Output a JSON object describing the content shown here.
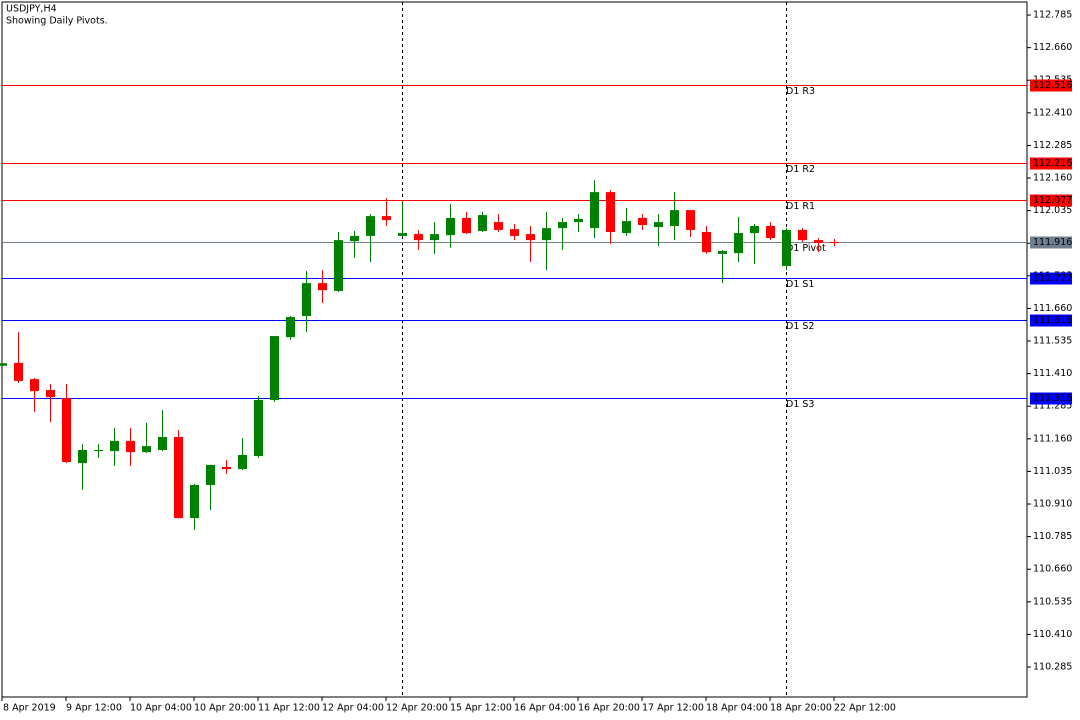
{
  "chart_data": {
    "type": "candlestick",
    "title": "USDJPY,H4",
    "subtitle": "Showing Daily Pivots.",
    "categories": [
      "8 Apr 2019",
      null,
      null,
      null,
      "9 Apr 12:00",
      null,
      null,
      null,
      "10 Apr 04:00",
      null,
      null,
      null,
      "10 Apr 20:00",
      null,
      null,
      null,
      "11 Apr 12:00",
      null,
      null,
      null,
      "12 Apr 04:00",
      null,
      null,
      null,
      "12 Apr 20:00",
      null,
      null,
      null,
      "15 Apr 12:00",
      null,
      null,
      null,
      "16 Apr 04:00",
      null,
      null,
      null,
      "16 Apr 20:00",
      null,
      null,
      null,
      "17 Apr 12:00",
      null,
      null,
      null,
      "18 Apr 04:00",
      null,
      null,
      null,
      "18 Apr 20:00",
      null,
      null,
      null,
      "22 Apr 12:00"
    ],
    "open": [
      111.44,
      111.451,
      111.389,
      111.347,
      111.316,
      111.067,
      111.113,
      111.113,
      111.152,
      111.109,
      111.117,
      111.167,
      110.856,
      110.983,
      111.052,
      111.044,
      111.094,
      111.309,
      111.55,
      111.631,
      111.757,
      111.727,
      111.918,
      111.938,
      112.014,
      111.938,
      111.945,
      111.922,
      111.941,
      112.007,
      111.957,
      111.991,
      111.964,
      111.945,
      111.922,
      111.968,
      111.991,
      111.968,
      112.106,
      111.949,
      112.007,
      111.972,
      111.976,
      112.037,
      111.953,
      111.869,
      111.872,
      111.949,
      111.976,
      111.823,
      111.961,
      111.922,
      111.915
    ],
    "high": [
      111.45,
      111.569,
      111.393,
      111.37,
      111.37,
      111.14,
      111.14,
      111.202,
      111.202,
      111.221,
      111.27,
      111.194,
      110.987,
      111.06,
      111.079,
      111.163,
      111.324,
      111.554,
      111.631,
      111.803,
      111.807,
      111.953,
      111.957,
      112.022,
      112.083,
      112.072,
      111.96,
      111.991,
      112.06,
      112.03,
      112.03,
      112.022,
      111.984,
      111.976,
      112.03,
      112.007,
      112.022,
      112.152,
      112.114,
      112.045,
      112.022,
      112.022,
      112.106,
      112.037,
      111.976,
      111.884,
      112.011,
      111.984,
      111.991,
      111.968,
      111.968,
      111.93,
      111.926
    ],
    "low": [
      111.44,
      111.374,
      111.263,
      111.224,
      111.067,
      110.964,
      111.086,
      111.056,
      111.056,
      111.106,
      111.113,
      110.856,
      110.81,
      110.887,
      111.025,
      111.04,
      111.087,
      111.301,
      111.539,
      111.569,
      111.681,
      111.723,
      111.853,
      111.838,
      111.976,
      111.934,
      111.884,
      111.869,
      111.892,
      111.945,
      111.953,
      111.953,
      111.922,
      111.838,
      111.807,
      111.884,
      111.953,
      111.93,
      111.907,
      111.938,
      111.961,
      111.899,
      111.922,
      111.934,
      111.869,
      111.757,
      111.838,
      111.83,
      111.922,
      111.807,
      111.915,
      111.876,
      111.899
    ],
    "close": [
      111.45,
      111.382,
      111.343,
      111.32,
      111.071,
      111.117,
      111.117,
      111.152,
      111.109,
      111.132,
      111.167,
      110.856,
      110.983,
      111.06,
      111.044,
      111.098,
      111.309,
      111.554,
      111.627,
      111.757,
      111.73,
      111.922,
      111.938,
      112.014,
      111.999,
      111.949,
      111.922,
      111.945,
      112.007,
      111.949,
      112.018,
      111.961,
      111.938,
      111.922,
      111.968,
      111.991,
      112.003,
      112.106,
      111.953,
      111.995,
      111.98,
      111.991,
      112.037,
      111.961,
      111.876,
      111.88,
      111.949,
      111.976,
      111.93,
      111.961,
      111.922,
      111.911,
      111.911
    ],
    "up_color": "#008000",
    "down_color": "#ff0000",
    "ylim": [
      110.17,
      112.835
    ],
    "yticks": [
      112.785,
      {
        "value": 112.66,
        "label": "112.660"
      },
      112.535,
      {
        "value": 112.41,
        "label": "112.410"
      },
      112.285,
      {
        "value": 112.16,
        "label": "112.160"
      },
      112.035,
      {
        "value": 111.91,
        "label": "111.910"
      },
      111.785,
      {
        "value": 111.66,
        "label": "111.660"
      },
      111.535,
      {
        "value": 111.41,
        "label": "111.410"
      },
      111.285,
      {
        "value": 111.16,
        "label": "111.160"
      },
      111.035,
      {
        "value": 110.91,
        "label": "110.910"
      },
      110.785,
      {
        "value": 110.66,
        "label": "110.660"
      },
      110.535,
      {
        "value": 110.41,
        "label": "110.410"
      },
      110.285
    ],
    "pivots": [
      {
        "name": "D1 R3",
        "value": 112.516,
        "color": "#ff0000"
      },
      {
        "name": "D1 R2",
        "value": 112.216,
        "color": "#ff0000"
      },
      {
        "name": "D1 R1",
        "value": 112.077,
        "color": "#ff0000"
      },
      {
        "name": "D1 Pivot",
        "value": 111.916,
        "color": "#708090"
      },
      {
        "name": "D1 S1",
        "value": 111.777,
        "color": "#0000ff"
      },
      {
        "name": "D1 S2",
        "value": 111.616,
        "color": "#0000ff"
      },
      {
        "name": "D1 S3",
        "value": 111.316,
        "color": "#0000ff"
      }
    ]
  }
}
